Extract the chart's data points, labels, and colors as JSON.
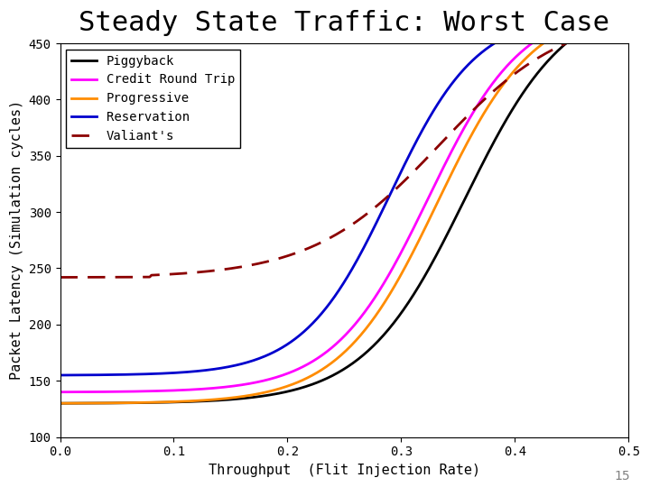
{
  "title": "Steady State Traffic: Worst Case",
  "xlabel": "Throughput  (Flit Injection Rate)",
  "ylabel": "Packet Latency (Simulation cycles)",
  "xlim": [
    0,
    0.5
  ],
  "ylim": [
    100,
    450
  ],
  "yticks": [
    100,
    150,
    200,
    250,
    300,
    350,
    400,
    450
  ],
  "xticks": [
    0,
    0.1,
    0.2,
    0.3,
    0.4,
    0.5
  ],
  "legend_entries": [
    "Piggyback",
    "Credit Round Trip",
    "Progressive",
    "Reservation",
    "Valiant's"
  ],
  "line_colors": [
    "#000000",
    "#ff00ff",
    "#ff8c00",
    "#0000cd",
    "#8b0000"
  ],
  "line_widths": [
    2.0,
    2.0,
    2.0,
    2.0,
    2.0
  ],
  "footnote": "15",
  "background_color": "#ffffff",
  "title_fontsize": 22,
  "axis_fontsize": 11,
  "legend_fontsize": 10,
  "tick_fontsize": 10
}
